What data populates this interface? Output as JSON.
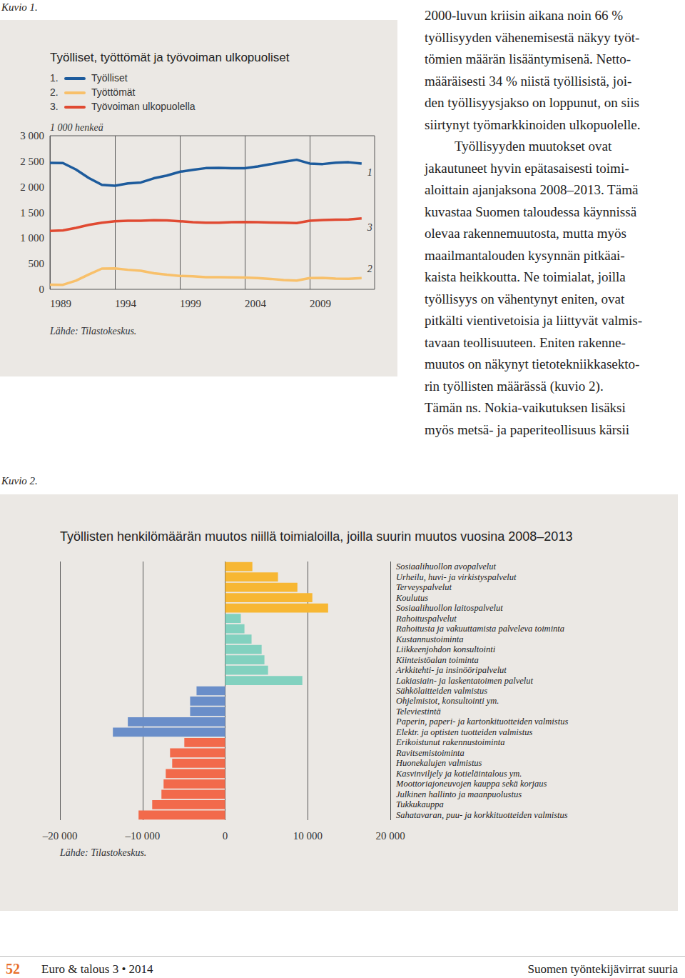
{
  "page": {
    "figure_labels": [
      "Kuvio 1.",
      "Kuvio 2."
    ],
    "paragraphs": [
      [
        "2000-luvun kriisin aikana noin 66 %",
        "työllisyyden vähenemisestä näkyy työt-",
        "tömien määrän lisääntymisenä. Netto-",
        "määräisesti 34 % niistä työllisistä, joi-",
        "den työllisyysjakso on loppunut, on siis",
        "siirtynyt työmarkkinoiden ulkopuolelle."
      ],
      [
        "Työllisyyden muutokset ovat",
        "jakautuneet hyvin epätasaisesti toimi-",
        "aloittain ajanjaksona 2008–2013. Tämä",
        "kuvastaa Suomen taloudessa käynnissä",
        "olevaa rakennemuutosta, mutta myös",
        "maailmantalouden kysynnän pitkäai-",
        "kaista heikkoutta. Ne toimialat, joilla",
        "työllisyys on vähentynyt eniten, ovat",
        "pitkälti vientivetoisia ja liittyvät valmis-",
        "tavaan teollisuuteen. Eniten rakenne-",
        "muutos on näkynyt tietotekniikkasekto-",
        "rin työllisten määrässä (kuvio 2).",
        "Tämän ns. Nokia-vaikutuksen lisäksi",
        "myös metsä- ja paperiteollisuus kärsii"
      ]
    ],
    "footer": {
      "page_number": "52",
      "publication": "Euro & talous 3 • 2014",
      "section": "Suomen työntekijävirrat suuria"
    }
  },
  "chart_data": [
    {
      "type": "line",
      "title": "Työlliset, työttömät ja työvoiman ulkopuoliset",
      "y_label": "1 000 henkeä",
      "source": "Lähde: Tilastokeskus.",
      "x": [
        1989,
        1990,
        1991,
        1992,
        1993,
        1994,
        1995,
        1996,
        1997,
        1998,
        1999,
        2000,
        2001,
        2002,
        2003,
        2004,
        2005,
        2006,
        2007,
        2008,
        2009,
        2010,
        2011,
        2012,
        2013
      ],
      "xlim": [
        1989,
        2014
      ],
      "xticks": [
        1989,
        1994,
        1999,
        2004,
        2009
      ],
      "ylim": [
        0,
        3000
      ],
      "yticks": [
        0,
        500,
        {
          "value": 1000,
          "label": "1 000"
        },
        {
          "value": 1500,
          "label": "1 500"
        },
        {
          "value": 2000,
          "label": "2 000"
        },
        {
          "value": 2500,
          "label": "2 500"
        },
        {
          "value": 3000,
          "label": "3 000"
        }
      ],
      "grid": "x",
      "series": [
        {
          "name": "Työlliset",
          "legend_label": "1.",
          "end_label": "1",
          "color": "#1d5b9c",
          "values": [
            2470,
            2467,
            2340,
            2174,
            2041,
            2024,
            2068,
            2087,
            2169,
            2222,
            2296,
            2335,
            2367,
            2372,
            2365,
            2365,
            2401,
            2444,
            2492,
            2531,
            2457,
            2447,
            2474,
            2482,
            2457
          ]
        },
        {
          "name": "Työttömät",
          "legend_label": "2.",
          "end_label": "2",
          "color": "#f8c06a",
          "values": [
            89,
            88,
            169,
            292,
            405,
            408,
            382,
            363,
            314,
            285,
            261,
            253,
            238,
            237,
            235,
            229,
            220,
            204,
            183,
            172,
            221,
            224,
            209,
            207,
            219
          ]
        },
        {
          "name": "Työvoiman ulkopuolella",
          "legend_label": "3.",
          "end_label": "3",
          "color": "#e04a32",
          "values": [
            1140,
            1150,
            1200,
            1260,
            1300,
            1330,
            1340,
            1340,
            1350,
            1345,
            1330,
            1310,
            1300,
            1300,
            1310,
            1315,
            1310,
            1305,
            1300,
            1295,
            1340,
            1355,
            1360,
            1365,
            1385
          ]
        }
      ]
    },
    {
      "type": "bar",
      "orientation": "horizontal",
      "title": "Työllisten henkilömäärän muutos niillä toimialoilla, joilla suurin muutos vuosina 2008–2013",
      "source": "Lähde: Tilastokeskus.",
      "categories": [
        "Sosiaalihuollon avopalvelut",
        "Urheilu, huvi- ja virkistyspalvelut",
        "Terveyspalvelut",
        "Koulutus",
        "Sosiaalihuollon laitospalvelut",
        "Rahoituspalvelut",
        "Rahoitusta ja vakuuttamista palveleva toiminta",
        "Kustannustoiminta",
        "Liikkeenjohdon konsultointi",
        "Kiinteistöalan toiminta",
        "Arkkitehti- ja insinööripalvelut",
        "Lakiasiain- ja laskentatoimen palvelut",
        "Sähkölaitteiden valmistus",
        "Ohjelmistot, konsultointi ym.",
        "Televiestintä",
        "Paperin, paperi- ja kartonkituotteiden valmistus",
        "Elektr. ja optisten tuotteiden valmistus",
        "Erikoistunut rakennustoiminta",
        "Ravitsemistoiminta",
        "Huonekalujen valmistus",
        "Kasvinviljely ja kotieläintalous ym.",
        "Moottoriajoneuvojen kauppa sekä korjaus",
        "Julkinen hallinto ja maanpuolustus",
        "Tukkukauppa",
        "Sahatavaran, puu- ja korkkituotteiden valmistus"
      ],
      "values": [
        3300,
        6400,
        8750,
        10560,
        12470,
        1900,
        2340,
        3200,
        4420,
        4760,
        5200,
        9350,
        -3460,
        -4240,
        -4240,
        -11780,
        -13590,
        -4940,
        -6670,
        -6410,
        -7190,
        -7450,
        -7710,
        -8830,
        -10480
      ],
      "colors": [
        "#f7b733",
        "#f7b733",
        "#f7b733",
        "#f7b733",
        "#f7b733",
        "#82d1bf",
        "#82d1bf",
        "#82d1bf",
        "#82d1bf",
        "#82d1bf",
        "#82d1bf",
        "#82d1bf",
        "#6a8ec9",
        "#6a8ec9",
        "#6a8ec9",
        "#6a8ec9",
        "#6a8ec9",
        "#f26a4b",
        "#f26a4b",
        "#f26a4b",
        "#f26a4b",
        "#f26a4b",
        "#f26a4b",
        "#f26a4b",
        "#f26a4b"
      ],
      "xlim": [
        -20000,
        20000
      ],
      "xticks": [
        {
          "value": -20000,
          "label": "–20 000"
        },
        {
          "value": -10000,
          "label": "–10 000"
        },
        0,
        {
          "value": 10000,
          "label": "10 000"
        },
        {
          "value": 20000,
          "label": "20 000"
        }
      ],
      "grid": true
    }
  ]
}
